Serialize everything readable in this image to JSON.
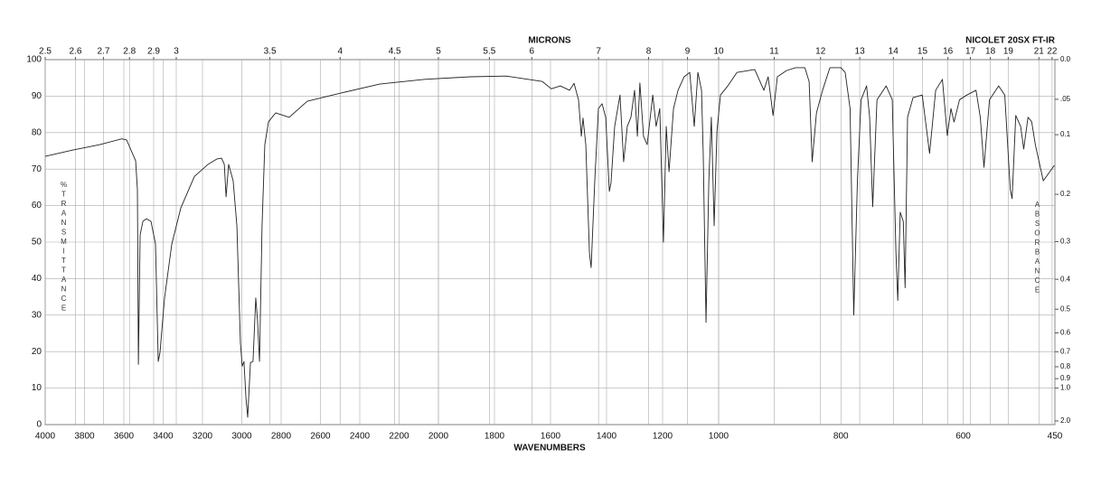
{
  "chart_data": {
    "type": "line",
    "title": "MICRONS",
    "subtitle": "NICOLET 20SX FT-IR",
    "xlabel": "WAVENUMBERS",
    "ylabel": "%TRANSMITTANCE",
    "y2label": "ABSORBANCE",
    "color": "#222222",
    "grid": true,
    "xlim": [
      4000,
      450
    ],
    "xbreaks": [
      4000,
      2000,
      1000,
      450
    ],
    "xticks": [
      4000,
      3800,
      3600,
      3400,
      3200,
      3000,
      2800,
      2600,
      2400,
      2200,
      2000,
      1800,
      1600,
      1400,
      1200,
      1000,
      800,
      600,
      450
    ],
    "x2ticks": [
      2.5,
      2.6,
      2.7,
      2.8,
      2.9,
      3,
      3.5,
      4,
      4.5,
      5,
      5.5,
      6,
      7,
      8,
      9,
      10,
      11,
      12,
      13,
      14,
      15,
      16,
      17,
      18,
      19,
      21,
      22
    ],
    "ylim": [
      0,
      100
    ],
    "yticks": [
      0,
      10,
      20,
      30,
      40,
      50,
      60,
      70,
      80,
      90,
      100
    ],
    "y2ticks": [
      {
        "value": 0,
        "label": "0.0"
      },
      {
        "value": 0.05,
        "label": ".05"
      },
      {
        "value": 0.1,
        "label": "0.1"
      },
      {
        "value": 0.2,
        "label": "0.2"
      },
      {
        "value": 0.3,
        "label": "0.3"
      },
      {
        "value": 0.4,
        "label": "0.4"
      },
      {
        "value": 0.5,
        "label": "0.5"
      },
      {
        "value": 0.6,
        "label": "0.6"
      },
      {
        "value": 0.7,
        "label": "0.7"
      },
      {
        "value": 0.8,
        "label": "0.8"
      },
      {
        "value": 0.9,
        "label": "0.9"
      },
      {
        "value": 1.0,
        "label": "1.0"
      },
      {
        "value": 2.0,
        "label": "2.0"
      }
    ],
    "x": [
      4000,
      3862,
      3724,
      3610,
      3586,
      3540,
      3531,
      3526,
      3517,
      3503,
      3485,
      3462,
      3439,
      3425,
      3416,
      3393,
      3356,
      3310,
      3241,
      3172,
      3126,
      3103,
      3089,
      3080,
      3067,
      3044,
      3025,
      3007,
      2998,
      2989,
      2979,
      2970,
      2956,
      2943,
      2929,
      2920,
      2910,
      2897,
      2883,
      2864,
      2828,
      2759,
      2667,
      2483,
      2299,
      2069,
      1887,
      1758,
      1629,
      1597,
      1565,
      1532,
      1516,
      1500,
      1490,
      1484,
      1474,
      1461,
      1455,
      1442,
      1429,
      1416,
      1403,
      1390,
      1384,
      1371,
      1352,
      1339,
      1326,
      1313,
      1300,
      1290,
      1281,
      1268,
      1255,
      1235,
      1223,
      1210,
      1197,
      1187,
      1177,
      1161,
      1145,
      1123,
      1103,
      1087,
      1074,
      1061,
      1055,
      1045,
      1035,
      1026,
      1016,
      1006,
      997,
      985,
      970,
      941,
      926,
      919,
      911,
      904,
      889,
      874,
      859,
      852,
      847,
      840,
      830,
      818,
      800,
      793,
      785,
      779,
      773,
      767,
      758,
      753,
      748,
      741,
      726,
      716,
      710,
      707,
      703,
      698,
      695,
      691,
      682,
      667,
      655,
      645,
      634,
      626,
      620,
      615,
      606,
      594,
      579,
      572,
      566,
      557,
      542,
      532,
      523,
      520,
      514,
      506,
      501,
      494,
      488,
      482,
      469,
      451
    ],
    "values": [
      73.5,
      75.2,
      76.7,
      78.3,
      78,
      72.3,
      64.4,
      16.5,
      52,
      55.7,
      56.4,
      55.7,
      49.5,
      17.3,
      19.8,
      34.7,
      49.5,
      59.4,
      68,
      71.3,
      72.8,
      73,
      71.3,
      62.4,
      71.3,
      66.8,
      54.5,
      22.3,
      16,
      17.3,
      7.4,
      2,
      17,
      17.3,
      34.7,
      28.5,
      17.3,
      54.5,
      76.7,
      83,
      85.4,
      84.2,
      88.6,
      91,
      93.3,
      94.6,
      95.3,
      95.5,
      94,
      92,
      92.8,
      91.6,
      93.5,
      89,
      79,
      84,
      76.7,
      47,
      43,
      66.8,
      86.6,
      87.9,
      84.2,
      63.9,
      66.3,
      81.7,
      90.3,
      72,
      81.7,
      84.2,
      91.6,
      79,
      93.6,
      79,
      76.7,
      90.3,
      81.7,
      86.6,
      50,
      81.7,
      69.3,
      86.6,
      91.6,
      95.3,
      96.5,
      81.7,
      96.5,
      91.6,
      74.3,
      28,
      66.8,
      84.2,
      54.5,
      80.4,
      90.3,
      92.8,
      96.5,
      97.3,
      91.6,
      95.3,
      84.7,
      95.3,
      97,
      97.8,
      97.8,
      94,
      72,
      85.4,
      91.6,
      97.8,
      97.8,
      96.5,
      86.6,
      30,
      66.8,
      89,
      92.8,
      84.2,
      59.7,
      89,
      92.8,
      89,
      47,
      34,
      58.2,
      55.7,
      37.5,
      84.2,
      89.6,
      90.3,
      74.3,
      91.6,
      94.6,
      79.2,
      86.6,
      82.9,
      89,
      90.3,
      91.6,
      84.2,
      70.5,
      89,
      92.8,
      90.3,
      64.4,
      61.9,
      84.7,
      81.7,
      75.5,
      84.2,
      83,
      76.7,
      66.8,
      71
    ]
  }
}
